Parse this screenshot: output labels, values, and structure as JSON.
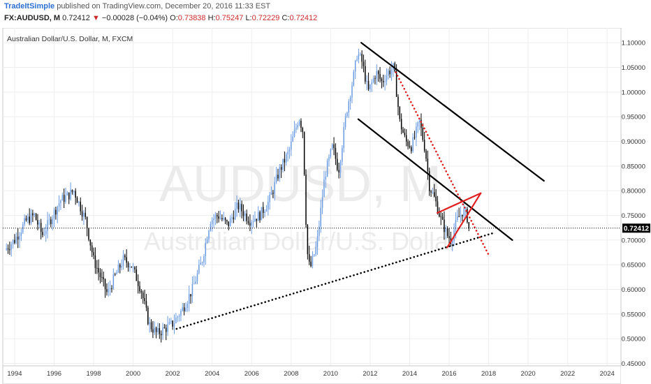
{
  "header": {
    "author": "TradeItSimple",
    "published_text": " published on TradingView.com, December 20, 2016 11:33 EST",
    "symbol": "FX:AUDUSD, M",
    "last": "0.72412",
    "change": "−0.00028 (−0.04%)",
    "open_label": "O:",
    "open": "0.73838",
    "high_label": "H:",
    "high": "0.75247",
    "low_label": "L:",
    "low": "0.72229",
    "close_label": "C:",
    "close": "0.72412"
  },
  "chart_data": {
    "type": "candlestick",
    "title": "Australian Dollar/U.S. Dollar, M, FXCM",
    "watermark_symbol": "AUDUSD, M",
    "watermark_name": "Australian Dollar/U.S. Dollar",
    "ylim": [
      0.445,
      1.13
    ],
    "xlim": [
      1993.4,
      2024.7
    ],
    "y_ticks": [
      "1.10000",
      "1.05000",
      "1.00000",
      "0.95000",
      "0.90000",
      "0.85000",
      "0.80000",
      "0.75000",
      "0.70000",
      "0.65000",
      "0.60000",
      "0.55000",
      "0.50000",
      "0.45000"
    ],
    "x_ticks": [
      "1994",
      "1996",
      "1998",
      "2000",
      "2002",
      "2004",
      "2006",
      "2008",
      "2010",
      "2012",
      "2014",
      "2016",
      "2018",
      "2020",
      "2022",
      "2024"
    ],
    "last_price_label": "0.72412",
    "last_price": 0.72412,
    "grid": true,
    "up_color": "#6a9be0",
    "down_color": "#000000",
    "price_path": [
      [
        1993.5,
        0.68
      ],
      [
        1994.0,
        0.7
      ],
      [
        1994.6,
        0.74
      ],
      [
        1995.0,
        0.75
      ],
      [
        1995.4,
        0.71
      ],
      [
        1995.8,
        0.74
      ],
      [
        1996.3,
        0.78
      ],
      [
        1996.7,
        0.79
      ],
      [
        1997.0,
        0.8
      ],
      [
        1997.3,
        0.77
      ],
      [
        1997.6,
        0.74
      ],
      [
        1998.0,
        0.66
      ],
      [
        1998.4,
        0.62
      ],
      [
        1998.7,
        0.59
      ],
      [
        1999.0,
        0.62
      ],
      [
        1999.5,
        0.66
      ],
      [
        1999.9,
        0.65
      ],
      [
        2000.4,
        0.6
      ],
      [
        2000.8,
        0.53
      ],
      [
        2001.2,
        0.51
      ],
      [
        2001.6,
        0.52
      ],
      [
        2002.0,
        0.53
      ],
      [
        2002.5,
        0.56
      ],
      [
        2003.0,
        0.6
      ],
      [
        2003.5,
        0.66
      ],
      [
        2003.9,
        0.74
      ],
      [
        2004.3,
        0.75
      ],
      [
        2004.8,
        0.73
      ],
      [
        2005.3,
        0.77
      ],
      [
        2005.9,
        0.74
      ],
      [
        2006.4,
        0.75
      ],
      [
        2006.9,
        0.78
      ],
      [
        2007.4,
        0.84
      ],
      [
        2007.9,
        0.88
      ],
      [
        2008.4,
        0.95
      ],
      [
        2008.6,
        0.92
      ],
      [
        2008.8,
        0.68
      ],
      [
        2008.95,
        0.64
      ],
      [
        2009.3,
        0.69
      ],
      [
        2009.7,
        0.83
      ],
      [
        2010.1,
        0.89
      ],
      [
        2010.4,
        0.84
      ],
      [
        2010.8,
        0.96
      ],
      [
        2011.2,
        1.04
      ],
      [
        2011.35,
        1.08
      ],
      [
        2011.6,
        1.06
      ],
      [
        2011.9,
        1.0
      ],
      [
        2012.3,
        1.04
      ],
      [
        2012.6,
        1.02
      ],
      [
        2012.9,
        1.04
      ],
      [
        2013.2,
        1.05
      ],
      [
        2013.5,
        0.94
      ],
      [
        2013.8,
        0.9
      ],
      [
        2014.1,
        0.89
      ],
      [
        2014.5,
        0.94
      ],
      [
        2014.8,
        0.88
      ],
      [
        2015.0,
        0.81
      ],
      [
        2015.3,
        0.78
      ],
      [
        2015.6,
        0.74
      ],
      [
        2015.9,
        0.71
      ],
      [
        2016.1,
        0.7
      ],
      [
        2016.4,
        0.74
      ],
      [
        2016.7,
        0.76
      ],
      [
        2016.9,
        0.75
      ],
      [
        2017.0,
        0.72412
      ]
    ],
    "drawings": [
      {
        "name": "upper-channel-line",
        "style": "solid",
        "color": "#000000",
        "points": [
          [
            2011.55,
            1.1
          ],
          [
            2020.8,
            0.82
          ]
        ]
      },
      {
        "name": "lower-channel-line",
        "style": "solid",
        "color": "#000000",
        "points": [
          [
            2011.4,
            0.945
          ],
          [
            2019.2,
            0.7
          ]
        ]
      },
      {
        "name": "red-dotted-trend",
        "style": "dotted",
        "color": "#e02020",
        "points": [
          [
            2013.3,
            1.04
          ],
          [
            2018.0,
            0.67
          ]
        ]
      },
      {
        "name": "long-support-dotted",
        "style": "dotted",
        "color": "#000000",
        "points": [
          [
            2002.2,
            0.52
          ],
          [
            2018.3,
            0.715
          ]
        ]
      },
      {
        "name": "wedge-upper",
        "style": "solid",
        "color": "#e02020",
        "points": [
          [
            2015.4,
            0.755
          ],
          [
            2017.6,
            0.795
          ]
        ]
      },
      {
        "name": "wedge-lower",
        "style": "solid",
        "color": "#e02020",
        "points": [
          [
            2015.9,
            0.685
          ],
          [
            2017.6,
            0.795
          ]
        ]
      }
    ]
  }
}
